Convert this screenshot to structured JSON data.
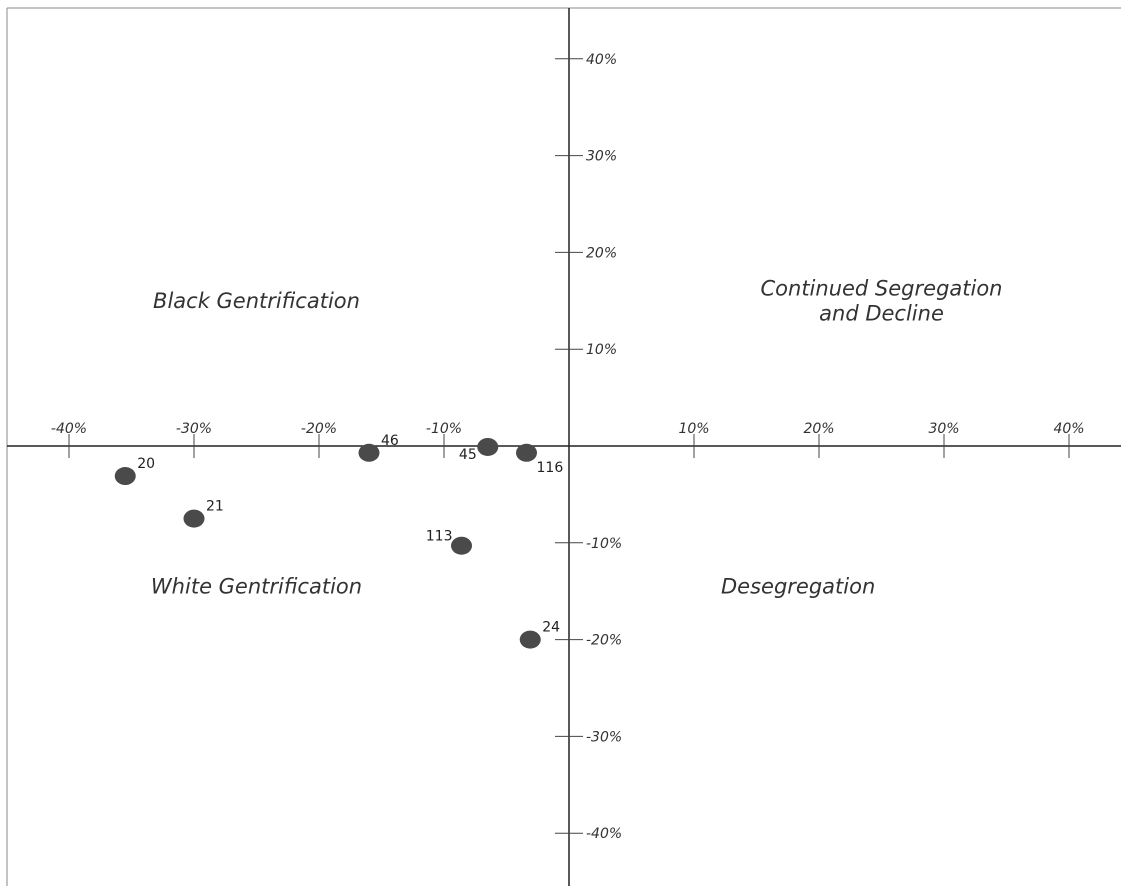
{
  "chart_data": {
    "type": "scatter",
    "title": "",
    "xlabel": "",
    "ylabel": "",
    "xlim": [
      -45,
      45
    ],
    "ylim": [
      -45,
      45
    ],
    "grid": false,
    "x_ticks": [
      {
        "value": -40,
        "label": "-40%"
      },
      {
        "value": -30,
        "label": "-30%"
      },
      {
        "value": -20,
        "label": "-20%"
      },
      {
        "value": -10,
        "label": "-10%"
      },
      {
        "value": 10,
        "label": "10%"
      },
      {
        "value": 20,
        "label": "20%"
      },
      {
        "value": 30,
        "label": "30%"
      },
      {
        "value": 40,
        "label": "40%"
      }
    ],
    "y_ticks": [
      {
        "value": 40,
        "label": "40%"
      },
      {
        "value": 30,
        "label": "30%"
      },
      {
        "value": 20,
        "label": "20%"
      },
      {
        "value": 10,
        "label": "10%"
      },
      {
        "value": -10,
        "label": "-10%"
      },
      {
        "value": -20,
        "label": "-20%"
      },
      {
        "value": -30,
        "label": "-30%"
      },
      {
        "value": -40,
        "label": "-40%"
      }
    ],
    "quadrant_labels": [
      {
        "id": "top-left",
        "lines": [
          "Black Gentrification"
        ],
        "x": -25,
        "y": 15
      },
      {
        "id": "top-right",
        "lines": [
          "Continued Segregation",
          "and Decline"
        ],
        "x": 25,
        "y": 15
      },
      {
        "id": "bottom-left",
        "lines": [
          "White Gentrification"
        ],
        "x": -25,
        "y": -14.5
      },
      {
        "id": "bottom-right",
        "lines": [
          "Desegregation"
        ],
        "x": 20.1,
        "y": -14.5
      }
    ],
    "points": [
      {
        "label": "20",
        "x": -35.5,
        "y": -3.1,
        "label_pos": "upper-right"
      },
      {
        "label": "21",
        "x": -30.0,
        "y": -7.5,
        "label_pos": "upper-right"
      },
      {
        "label": "46",
        "x": -16.0,
        "y": -0.7,
        "label_pos": "upper-right"
      },
      {
        "label": "45",
        "x": -6.5,
        "y": -0.1,
        "label_pos": "lower-left"
      },
      {
        "label": "116",
        "x": -3.4,
        "y": -0.7,
        "label_pos": "lower-right"
      },
      {
        "label": "113",
        "x": -8.6,
        "y": -10.3,
        "label_pos": "upper-left"
      },
      {
        "label": "24",
        "x": -3.1,
        "y": -20.0,
        "label_pos": "upper-right"
      }
    ],
    "point_color": "#4a4a4a"
  }
}
